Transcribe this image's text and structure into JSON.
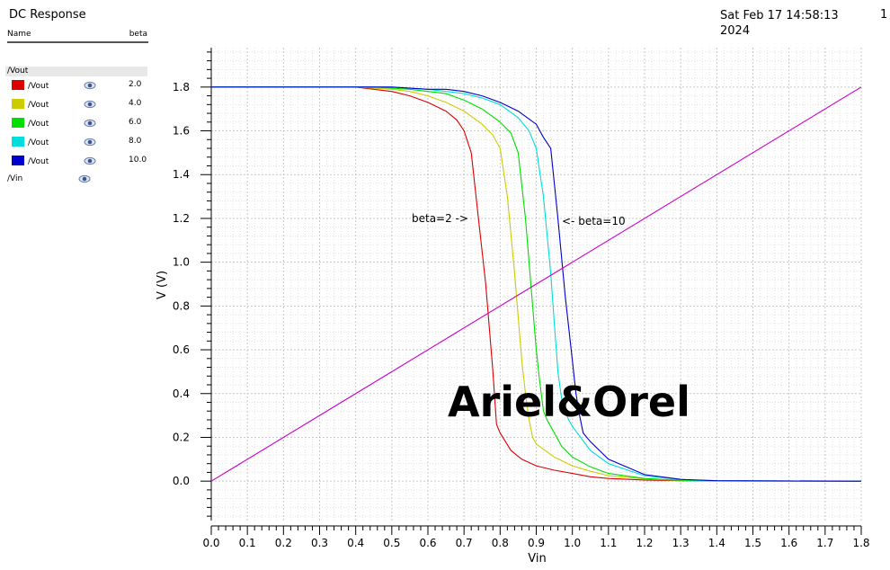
{
  "header": {
    "title": "DC Response",
    "timestamp_line1": "Sat Feb 17 14:58:13",
    "timestamp_line2": "2024",
    "page_number": "1"
  },
  "legend": {
    "col_name": "Name",
    "col_param": "beta",
    "group_label": "/Vout",
    "items": [
      {
        "name": "/Vout",
        "value": "2.0",
        "color": "#dd0000"
      },
      {
        "name": "/Vout",
        "value": "4.0",
        "color": "#cccc00"
      },
      {
        "name": "/Vout",
        "value": "6.0",
        "color": "#00dd00"
      },
      {
        "name": "/Vout",
        "value": "8.0",
        "color": "#00dddd"
      },
      {
        "name": "/Vout",
        "value": "10.0",
        "color": "#0000cc"
      }
    ],
    "vin_label": "/Vin",
    "eye_icon": "eye-icon"
  },
  "watermark": "Ariel&Orel",
  "chart_data": {
    "type": "line",
    "xlabel": "Vin",
    "ylabel": "V (V)",
    "xlim": [
      0.0,
      1.8
    ],
    "ylim": [
      -0.18,
      1.98
    ],
    "x_ticks": [
      "0.0",
      "0.1",
      "0.2",
      "0.3",
      "0.4",
      "0.5",
      "0.6",
      "0.7",
      "0.8",
      "0.9",
      "1.0",
      "1.1",
      "1.2",
      "1.3",
      "1.4",
      "1.5",
      "1.6",
      "1.7",
      "1.8"
    ],
    "y_ticks": [
      "0.0",
      "0.2",
      "0.4",
      "0.6",
      "0.8",
      "1.0",
      "1.2",
      "1.4",
      "1.6",
      "1.8"
    ],
    "grid": true,
    "annotations": [
      "beta=2 ->",
      "<- beta=10"
    ],
    "series": [
      {
        "name": "/Vout",
        "param": "2.0",
        "color": "#dd0000",
        "x": [
          0,
          0.3,
          0.4,
          0.45,
          0.5,
          0.55,
          0.6,
          0.65,
          0.68,
          0.7,
          0.72,
          0.74,
          0.76,
          0.77,
          0.78,
          0.79,
          0.8,
          0.83,
          0.86,
          0.9,
          0.95,
          1.0,
          1.05,
          1.1,
          1.2,
          1.3,
          1.4,
          1.8
        ],
        "y": [
          1.8,
          1.8,
          1.8,
          1.79,
          1.78,
          1.76,
          1.73,
          1.69,
          1.65,
          1.6,
          1.5,
          1.2,
          0.9,
          0.7,
          0.5,
          0.26,
          0.22,
          0.14,
          0.1,
          0.07,
          0.05,
          0.035,
          0.02,
          0.012,
          0.005,
          0.002,
          0.001,
          0.0
        ]
      },
      {
        "name": "/Vout",
        "param": "4.0",
        "color": "#cccc00",
        "x": [
          0,
          0.4,
          0.5,
          0.55,
          0.6,
          0.65,
          0.7,
          0.75,
          0.78,
          0.8,
          0.82,
          0.84,
          0.85,
          0.86,
          0.87,
          0.88,
          0.89,
          0.9,
          0.95,
          1.0,
          1.05,
          1.1,
          1.2,
          1.3,
          1.4,
          1.8
        ],
        "y": [
          1.8,
          1.8,
          1.79,
          1.78,
          1.76,
          1.73,
          1.69,
          1.63,
          1.58,
          1.52,
          1.3,
          0.95,
          0.75,
          0.55,
          0.4,
          0.28,
          0.2,
          0.17,
          0.11,
          0.07,
          0.045,
          0.025,
          0.01,
          0.003,
          0.001,
          0.0
        ]
      },
      {
        "name": "/Vout",
        "param": "6.0",
        "color": "#00dd00",
        "x": [
          0,
          0.45,
          0.55,
          0.6,
          0.65,
          0.7,
          0.75,
          0.8,
          0.83,
          0.85,
          0.87,
          0.89,
          0.9,
          0.91,
          0.92,
          0.93,
          0.94,
          0.97,
          1.0,
          1.05,
          1.1,
          1.2,
          1.3,
          1.4,
          1.8
        ],
        "y": [
          1.8,
          1.8,
          1.79,
          1.78,
          1.77,
          1.74,
          1.7,
          1.64,
          1.59,
          1.5,
          1.2,
          0.8,
          0.6,
          0.45,
          0.32,
          0.28,
          0.25,
          0.16,
          0.11,
          0.065,
          0.035,
          0.012,
          0.004,
          0.001,
          0.0
        ]
      },
      {
        "name": "/Vout",
        "param": "8.0",
        "color": "#00dddd",
        "x": [
          0,
          0.5,
          0.6,
          0.65,
          0.7,
          0.75,
          0.8,
          0.85,
          0.88,
          0.9,
          0.92,
          0.94,
          0.95,
          0.96,
          0.97,
          0.98,
          0.99,
          1.0,
          1.05,
          1.1,
          1.2,
          1.3,
          1.4,
          1.8
        ],
        "y": [
          1.8,
          1.8,
          1.79,
          1.78,
          1.77,
          1.75,
          1.72,
          1.66,
          1.6,
          1.52,
          1.3,
          0.95,
          0.72,
          0.5,
          0.38,
          0.32,
          0.28,
          0.25,
          0.14,
          0.08,
          0.025,
          0.007,
          0.002,
          0.0
        ]
      },
      {
        "name": "/Vout",
        "param": "10.0",
        "color": "#0000cc",
        "x": [
          0,
          0.5,
          0.6,
          0.65,
          0.7,
          0.75,
          0.8,
          0.85,
          0.9,
          0.92,
          0.94,
          0.96,
          0.98,
          1.0,
          1.01,
          1.02,
          1.03,
          1.05,
          1.1,
          1.2,
          1.3,
          1.4,
          1.8
        ],
        "y": [
          1.8,
          1.8,
          1.79,
          1.79,
          1.78,
          1.76,
          1.73,
          1.69,
          1.63,
          1.57,
          1.52,
          1.2,
          0.85,
          0.55,
          0.4,
          0.3,
          0.22,
          0.18,
          0.1,
          0.03,
          0.008,
          0.002,
          0.0
        ]
      },
      {
        "name": "/Vin",
        "color": "#cc00cc",
        "x": [
          0.0,
          1.8
        ],
        "y": [
          0.0,
          1.8
        ]
      }
    ]
  }
}
